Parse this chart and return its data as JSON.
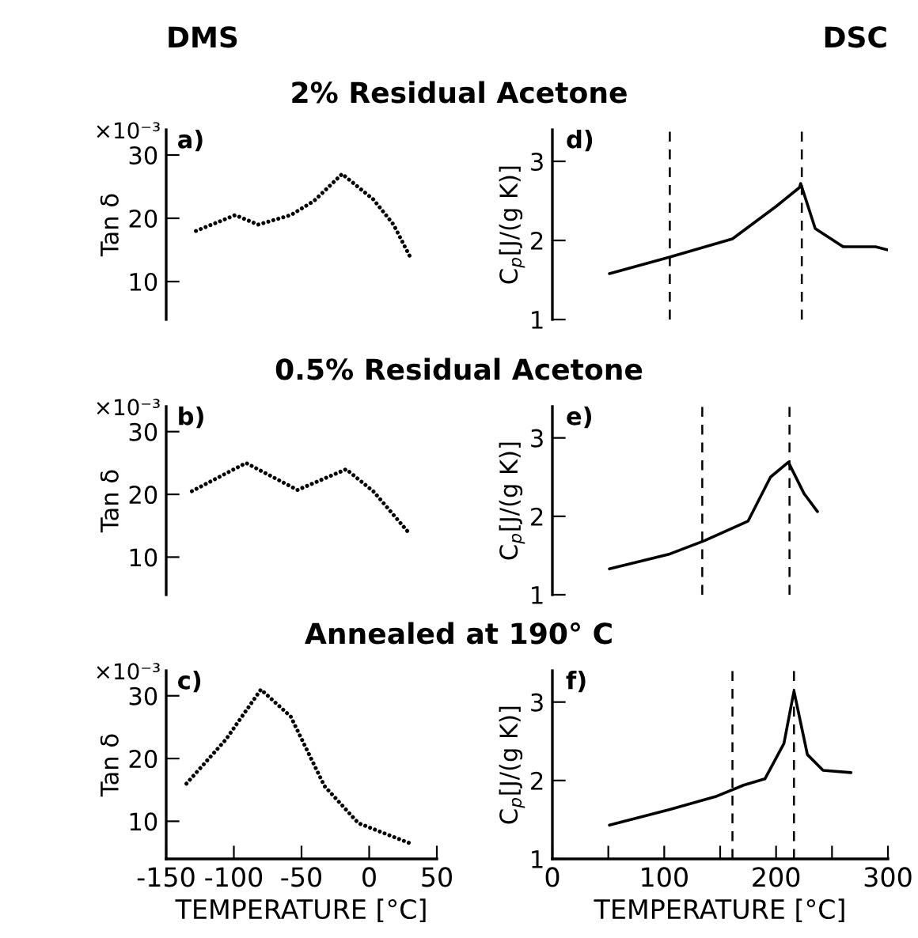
{
  "chart_data": [
    {
      "type": "line",
      "subtitle": "DMS",
      "title": "2% Residual Acetone",
      "ylabel": "Tan δ",
      "annotations": [
        "a)",
        "×10⁻³"
      ],
      "x": [
        -128,
        -99,
        -82,
        -58,
        -41,
        -20,
        3,
        18,
        30
      ],
      "series": [
        {
          "color": "#000000",
          "values": [
            18.0,
            20.5,
            19.0,
            20.5,
            22.7,
            27.0,
            23.0,
            19.0,
            14.0
          ]
        }
      ],
      "line_style": "dotted",
      "xlim": [
        -150,
        50
      ],
      "ylim": [
        4,
        34
      ],
      "yticks": [
        30,
        20,
        10
      ],
      "tick_labels": "y"
    },
    {
      "type": "line",
      "subtitle": "DSC",
      "ylabel": "C$_{p}$[J/(g K)]",
      "annotations": [
        "d)"
      ],
      "x": [
        51,
        105,
        161,
        200,
        221,
        222,
        235,
        260,
        289,
        300
      ],
      "series": [
        {
          "color": "#000000",
          "values": [
            1.58,
            1.79,
            2.02,
            2.43,
            2.67,
            2.72,
            2.15,
            1.92,
            1.92,
            1.88
          ]
        }
      ],
      "line_style": "solid",
      "xlim": [
        0,
        300
      ],
      "ylim": [
        1,
        3.4
      ],
      "yticks": [
        1,
        2,
        3
      ],
      "tick_labels": "y",
      "ref_lines": [
        {
          "axis": "x",
          "value": 105,
          "line_style": "dashed",
          "color": "#000000"
        },
        {
          "axis": "x",
          "value": 223,
          "line_style": "dashed",
          "color": "#000000"
        }
      ]
    },
    {
      "type": "line",
      "title": "0.5% Residual Acetone",
      "ylabel": "Tan δ",
      "annotations": [
        "b)",
        "×10⁻³"
      ],
      "x": [
        -131,
        -91,
        -53,
        -17,
        3,
        30
      ],
      "series": [
        {
          "color": "#000000",
          "values": [
            20.5,
            25.0,
            20.7,
            24.0,
            20.5,
            13.7
          ]
        }
      ],
      "line_style": "dotted",
      "xlim": [
        -150,
        50
      ],
      "ylim": [
        4,
        34
      ],
      "yticks": [
        30,
        20,
        10
      ],
      "tick_labels": "y"
    },
    {
      "type": "line",
      "ylabel": "C$_{p}$[J/(g K)]",
      "annotations": [
        "e)"
      ],
      "x": [
        51,
        105,
        136,
        175,
        195,
        211,
        225,
        237
      ],
      "series": [
        {
          "color": "#000000",
          "values": [
            1.33,
            1.52,
            1.69,
            1.94,
            2.5,
            2.69,
            2.29,
            2.06
          ]
        }
      ],
      "line_style": "solid",
      "xlim": [
        0,
        300
      ],
      "ylim": [
        1,
        3.4
      ],
      "yticks": [
        1,
        2,
        3
      ],
      "tick_labels": "y",
      "ref_lines": [
        {
          "axis": "x",
          "value": 134,
          "line_style": "dashed",
          "color": "#000000"
        },
        {
          "axis": "x",
          "value": 212,
          "line_style": "dashed",
          "color": "#000000"
        }
      ]
    },
    {
      "type": "line",
      "title": "Annealed at 190° C",
      "ylabel": "Tan δ",
      "xlabel": "TEMPERATURE [°C]",
      "annotations": [
        "c)",
        "×10⁻³"
      ],
      "x": [
        -135,
        -106,
        -80,
        -58,
        -33,
        -8,
        30
      ],
      "series": [
        {
          "color": "#000000",
          "values": [
            16.0,
            23.0,
            31.0,
            26.7,
            15.6,
            9.7,
            6.5
          ]
        }
      ],
      "line_style": "dotted",
      "xlim": [
        -150,
        50
      ],
      "ylim": [
        4,
        34
      ],
      "xticks": [
        -150,
        -100,
        -50,
        0,
        50
      ],
      "yticks": [
        30,
        20,
        10
      ]
    },
    {
      "type": "line",
      "ylabel": "C$_{p}$[J/(g K)]",
      "xlabel": "TEMPERATURE [°C]",
      "annotations": [
        "f)"
      ],
      "x": [
        51,
        105,
        147,
        171,
        190,
        207,
        216,
        228,
        242,
        267
      ],
      "series": [
        {
          "color": "#000000",
          "values": [
            1.43,
            1.63,
            1.8,
            1.94,
            2.02,
            2.47,
            3.14,
            2.33,
            2.13,
            2.1
          ]
        }
      ],
      "line_style": "solid",
      "xlim": [
        0,
        300
      ],
      "ylim": [
        1,
        3.4
      ],
      "xticks": [
        0,
        {
          "value": 50,
          "label": null
        },
        100,
        {
          "value": 150,
          "label": null
        },
        200,
        {
          "value": 250,
          "label": null
        },
        300
      ],
      "yticks": [
        1,
        2,
        3
      ],
      "ref_lines": [
        {
          "axis": "x",
          "value": 161,
          "line_style": "dashed",
          "color": "#000000"
        },
        {
          "axis": "x",
          "value": 216,
          "line_style": "dashed",
          "color": "#000000"
        }
      ]
    }
  ]
}
